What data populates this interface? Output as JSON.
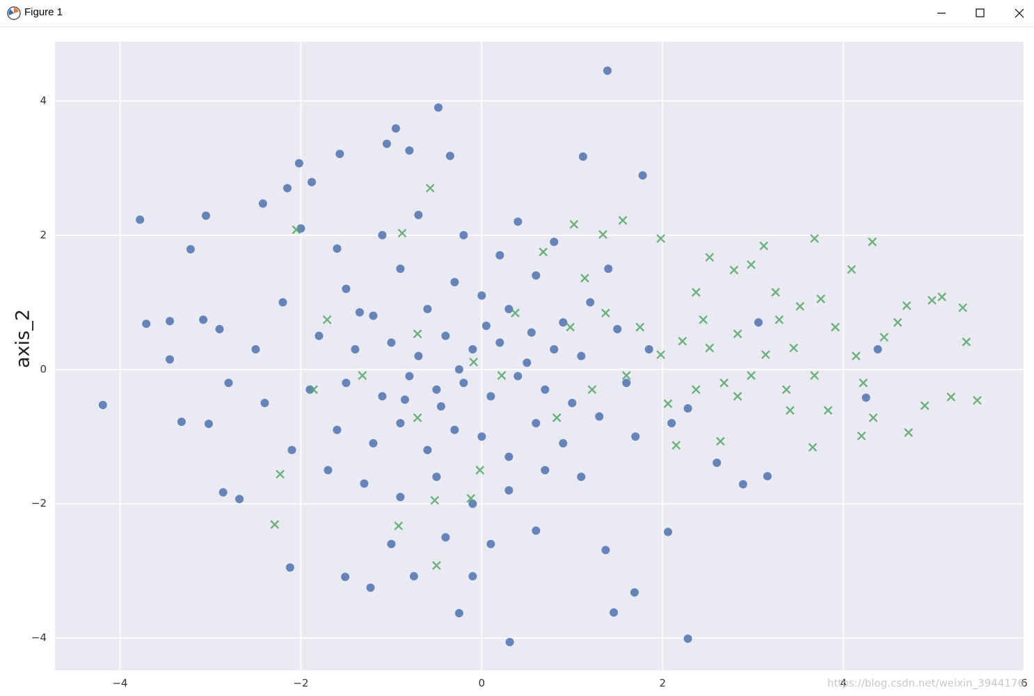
{
  "window": {
    "title": "Figure 1"
  },
  "chart_data": {
    "type": "scatter",
    "ylabel": "axis_2",
    "watermark": "https://blog.csdn.net/weixin_3944176",
    "xlim": [
      -4.72,
      6
    ],
    "ylim": [
      -4.48,
      4.88
    ],
    "xticks": [
      {
        "value": -4,
        "label": "−4"
      },
      {
        "value": -2,
        "label": "−2"
      },
      0,
      2,
      4,
      6
    ],
    "yticks": [
      {
        "value": -4,
        "label": "−4"
      },
      {
        "value": -2,
        "label": "−2"
      },
      0,
      2,
      4
    ],
    "grid": true,
    "background": "#eaeaf2",
    "series": [
      {
        "color": "#4c72b0",
        "marker": "o",
        "x": [
          -4.19,
          -3.78,
          -3.71,
          -3.45,
          -3.45,
          -3.32,
          -3.22,
          -3.05,
          -3.08,
          -3.02,
          -2.86,
          -2.68,
          -2.12,
          -2.02,
          -1.88,
          -2.15,
          -2.42,
          -1.57,
          -1.05,
          -0.95,
          -0.48,
          -0.8,
          -0.35,
          1.12,
          1.39,
          1.78,
          -0.25,
          0.31,
          1.46,
          2.28,
          1.69,
          1.37,
          -0.1,
          -0.75,
          -1.51,
          -1.23,
          2.06,
          3.16,
          2.89,
          4.25,
          4.38,
          3.06,
          2.6,
          2.28,
          -1.5,
          -1.2,
          -0.9,
          -0.6,
          -0.3,
          0,
          0.3,
          0.6,
          0.9,
          1.2,
          -1.8,
          -1.4,
          -1.0,
          -0.7,
          -0.4,
          -0.1,
          0.2,
          0.5,
          0.8,
          1.1,
          -1.9,
          -1.5,
          -1.1,
          -0.8,
          -0.5,
          -0.2,
          0.1,
          0.4,
          0.7,
          1.0,
          -1.6,
          -1.2,
          -0.9,
          -0.6,
          -0.3,
          0,
          0.3,
          0.6,
          0.9,
          1.3,
          -1.3,
          -0.9,
          -0.5,
          -0.1,
          0.3,
          0.7,
          -1.7,
          1.1,
          -1.1,
          -0.7,
          -0.2,
          0.4,
          0.8,
          -1.6,
          -2.2,
          -2.4,
          -2.5,
          -2.1,
          1.5,
          1.6,
          1.4,
          1.7,
          -0.4,
          0.1,
          -1.0,
          0.6,
          -2.0,
          0.2,
          -0.25,
          -0.45,
          0.05,
          -0.85,
          0.55,
          -1.35,
          1.85,
          2.1,
          -2.8,
          -2.9
        ],
        "values": [
          -0.53,
          2.23,
          0.68,
          0.15,
          0.72,
          -0.78,
          1.79,
          2.29,
          0.74,
          -0.81,
          -1.83,
          -1.93,
          -2.95,
          3.07,
          2.79,
          2.7,
          2.47,
          3.21,
          3.36,
          3.59,
          3.9,
          3.26,
          3.18,
          3.17,
          4.45,
          2.89,
          -3.63,
          -4.06,
          -3.62,
          -4.01,
          -3.32,
          -2.69,
          -3.08,
          -3.08,
          -3.09,
          -3.25,
          -2.42,
          -1.59,
          -1.71,
          -0.42,
          0.3,
          0.7,
          -1.39,
          -0.58,
          1.2,
          0.8,
          1.5,
          0.9,
          1.3,
          1.1,
          0.9,
          1.4,
          0.7,
          1.0,
          0.5,
          0.3,
          0.4,
          0.2,
          0.5,
          0.3,
          0.4,
          0.1,
          0.3,
          0.2,
          -0.3,
          -0.2,
          -0.4,
          -0.1,
          -0.3,
          -0.2,
          -0.4,
          -0.1,
          -0.3,
          -0.5,
          -0.9,
          -1.1,
          -0.8,
          -1.2,
          -0.9,
          -1.0,
          -1.3,
          -0.8,
          -1.1,
          -0.7,
          -1.7,
          -1.9,
          -1.6,
          -2.0,
          -1.8,
          -1.5,
          -1.5,
          -1.6,
          2.0,
          2.3,
          2.0,
          2.2,
          1.9,
          1.8,
          1.0,
          -0.5,
          0.3,
          -1.2,
          0.6,
          -0.2,
          1.5,
          -1.0,
          -2.5,
          -2.6,
          -2.6,
          -2.4,
          2.1,
          1.7,
          0.0,
          -0.55,
          0.65,
          -0.45,
          0.55,
          0.85,
          0.3,
          -0.8,
          -0.2,
          0.6
        ]
      },
      {
        "color": "#55a868",
        "marker": "x",
        "x": [
          5.48,
          5.36,
          5.19,
          5.09,
          4.98,
          5.32,
          4.72,
          4.9,
          4.32,
          3.68,
          3.66,
          3.12,
          4.09,
          4.2,
          4.33,
          4.7,
          4.6,
          2.64,
          2.15,
          1.56,
          1.34,
          1.98,
          1.02,
          -0.57,
          -2.05,
          -2.29,
          -2.23,
          -0.5,
          -0.92,
          -0.52,
          -0.12,
          -0.02,
          -0.88,
          0.68,
          2.52,
          2.79,
          2.98,
          3.25,
          3.52,
          3.75,
          3.91,
          3.45,
          3.14,
          2.83,
          2.52,
          2.22,
          1.98,
          1.75,
          1.6,
          2.68,
          2.98,
          3.37,
          3.68,
          3.83,
          3.41,
          2.83,
          2.37,
          2.06,
          4.22,
          4.14,
          4.45,
          1.37,
          1.14,
          0.98,
          1.22,
          0.83,
          0.22,
          -0.09,
          -0.71,
          -1.32,
          -1.71,
          -1.86,
          -0.71,
          0.37,
          2.37,
          2.45,
          3.29
        ],
        "values": [
          -0.46,
          0.41,
          -0.41,
          1.08,
          1.03,
          0.92,
          -0.94,
          -0.54,
          1.9,
          1.95,
          -1.16,
          1.84,
          1.49,
          -0.99,
          -0.72,
          0.95,
          0.7,
          -1.07,
          -1.13,
          2.22,
          2.01,
          1.95,
          2.16,
          2.7,
          2.08,
          -2.31,
          -1.56,
          -2.92,
          -2.33,
          -1.95,
          -1.92,
          -1.5,
          2.03,
          1.75,
          1.67,
          1.48,
          1.56,
          1.15,
          0.94,
          1.05,
          0.63,
          0.32,
          0.22,
          0.53,
          0.32,
          0.42,
          0.22,
          0.63,
          -0.09,
          -0.2,
          -0.09,
          -0.3,
          -0.09,
          -0.61,
          -0.61,
          -0.4,
          -0.3,
          -0.51,
          -0.2,
          0.2,
          0.48,
          0.84,
          1.36,
          0.63,
          -0.3,
          -0.72,
          -0.09,
          0.11,
          0.53,
          -0.09,
          0.74,
          -0.3,
          -0.72,
          0.84,
          1.15,
          0.74,
          0.74
        ]
      }
    ]
  }
}
